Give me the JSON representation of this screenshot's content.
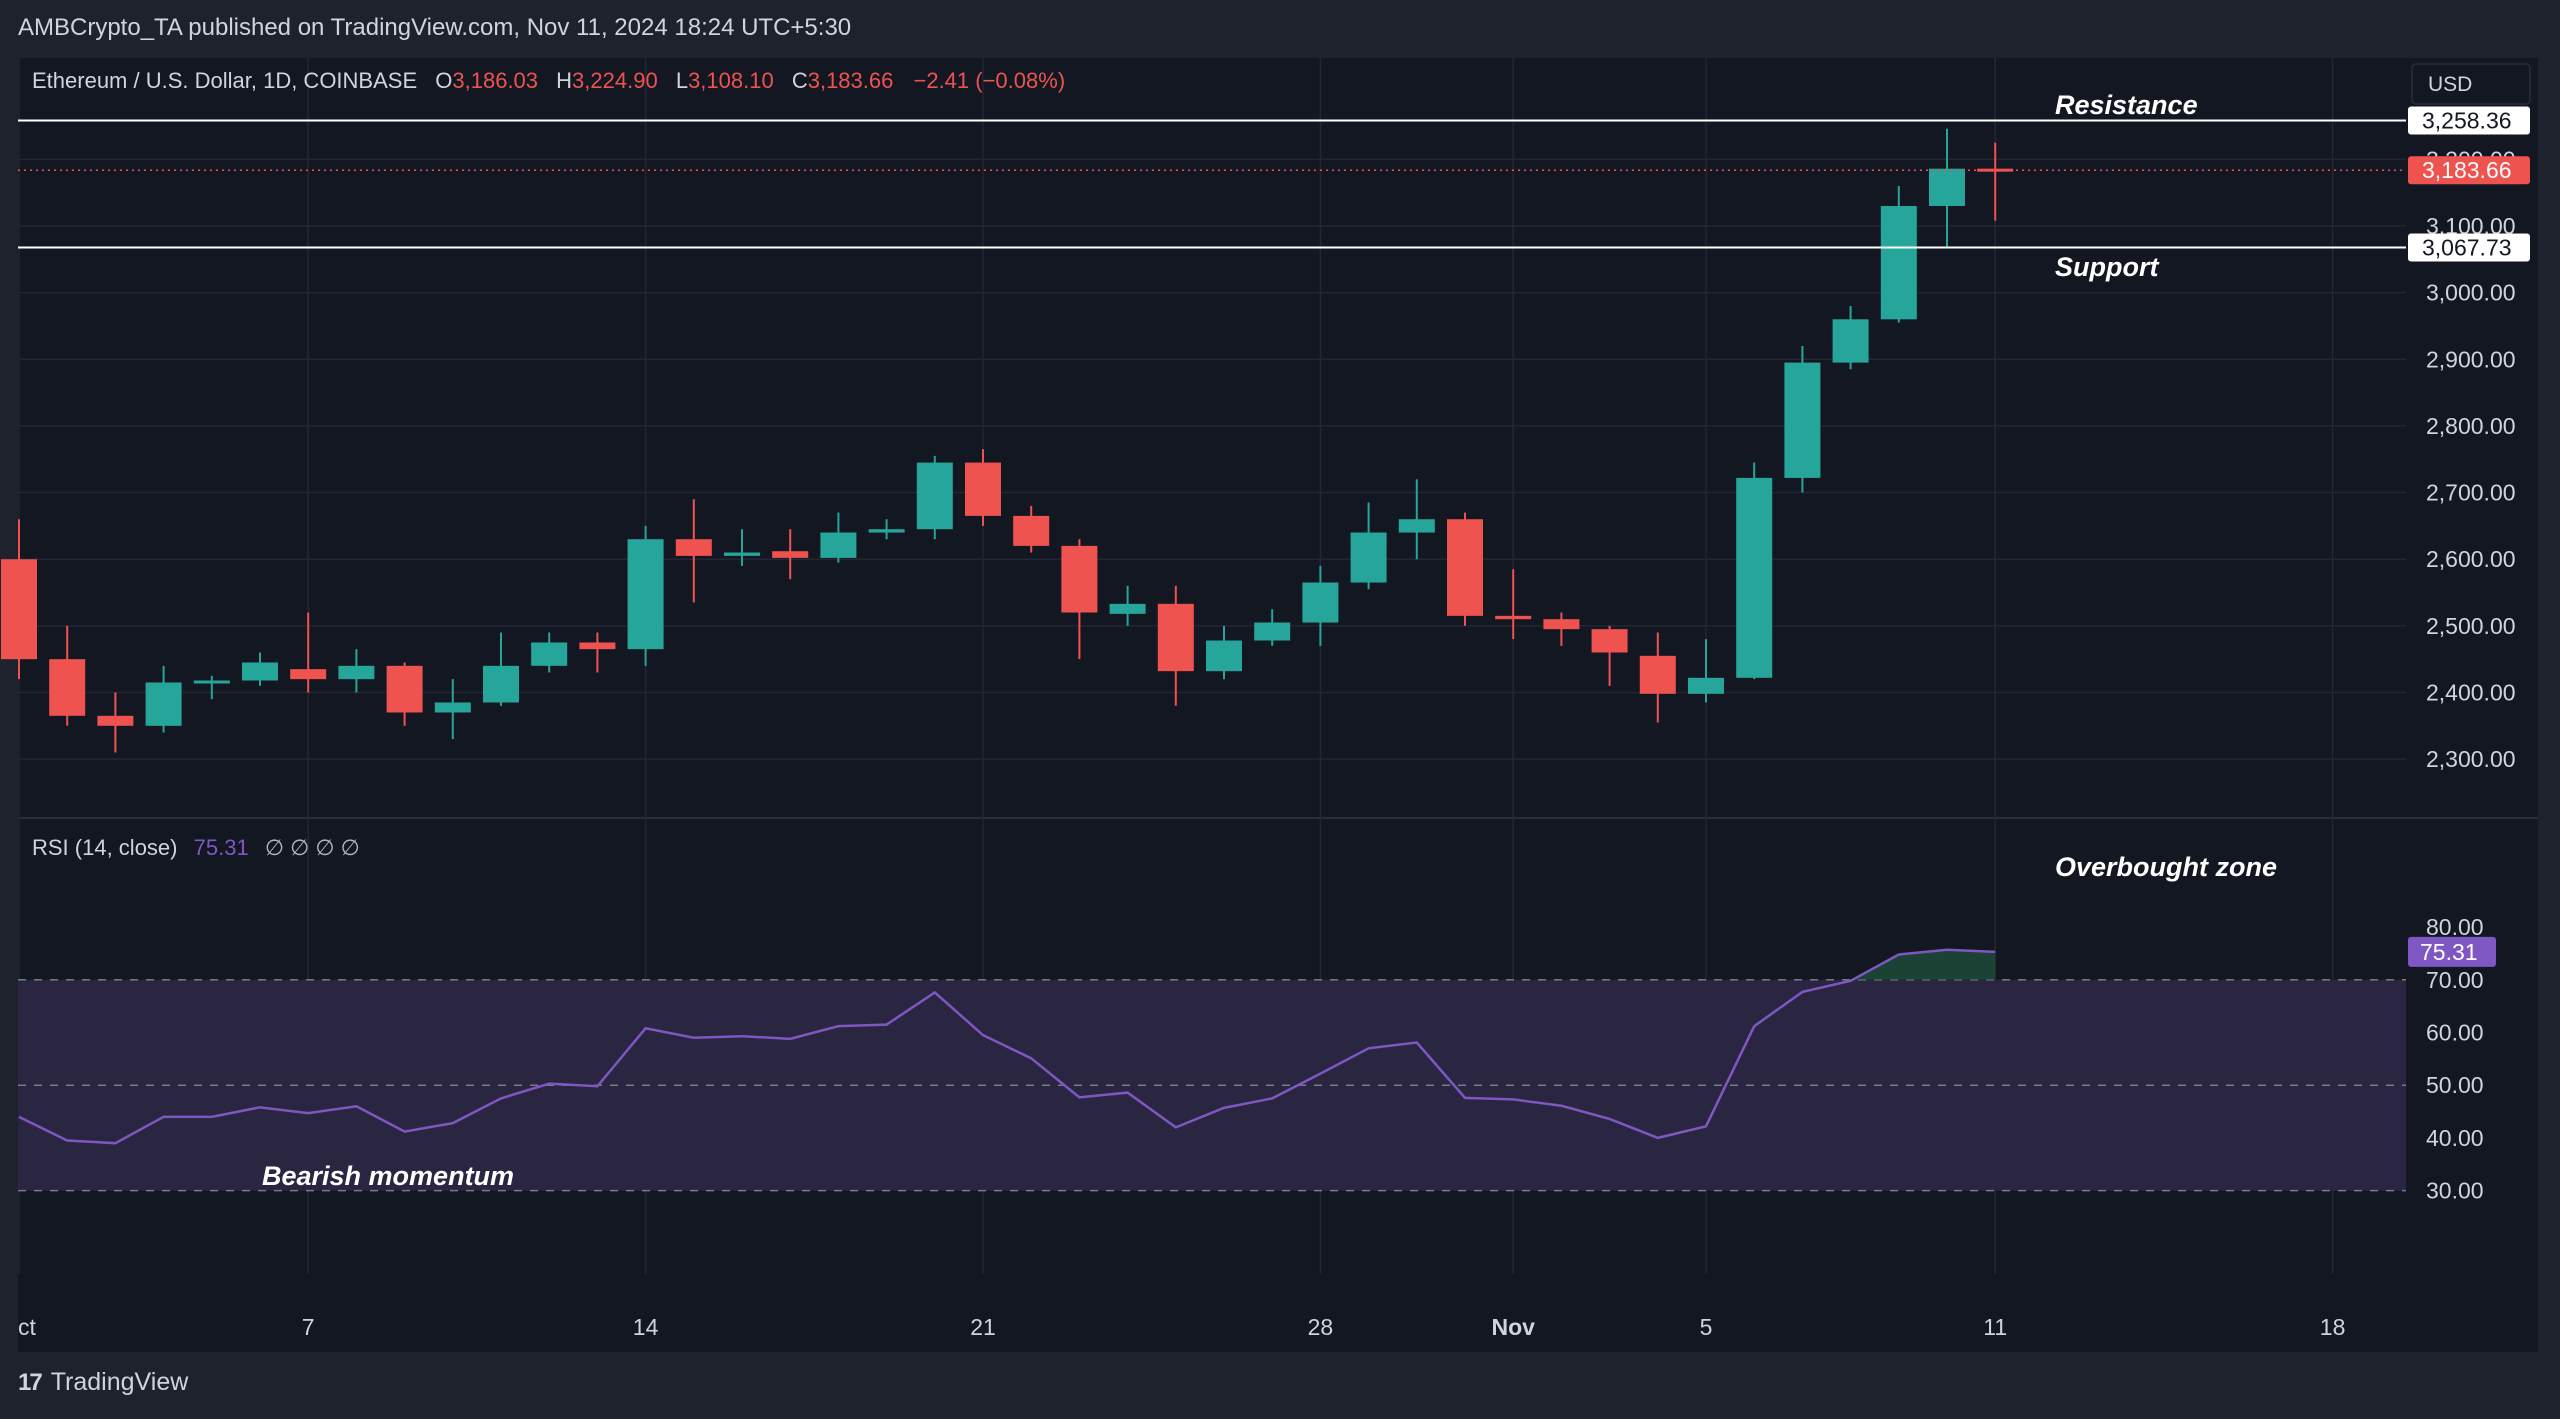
{
  "header": {
    "published": "AMBCrypto_TA published on TradingView.com, Nov 11, 2024 18:24 UTC+5:30"
  },
  "legend": {
    "symbol": "Ethereum / U.S. Dollar, 1D, COINBASE",
    "o_label": "O",
    "o_value": "3,186.03",
    "h_label": "H",
    "h_value": "3,224.90",
    "l_label": "L",
    "l_value": "3,108.10",
    "c_label": "C",
    "c_value": "3,183.66",
    "change": "−2.41 (−0.08%)"
  },
  "currency": "USD",
  "rsi_legend": {
    "label": "RSI (14, close)",
    "value": "75.31",
    "extras": "∅ ∅ ∅ ∅"
  },
  "annotations": {
    "resistance": "Resistance",
    "support": "Support",
    "overbought": "Overbought zone",
    "bearish": "Bearish momentum"
  },
  "footer": {
    "brand": "TradingView",
    "logo": "17"
  },
  "colors": {
    "background": "#131722",
    "panel": "#1e222d",
    "up": "#26a69a",
    "down": "#ef5350",
    "rsi_line": "#7e57c2",
    "rsi_band": "#2a2540",
    "grid": "#232734",
    "text": "#d1d4dc"
  },
  "chart_data": {
    "type": "candlestick",
    "price_axis": {
      "ylim": [
        2200,
        3300
      ],
      "ticks": [
        {
          "value": 2300,
          "label": "2,300.00"
        },
        {
          "value": 2400,
          "label": "2,400.00"
        },
        {
          "value": 2500,
          "label": "2,500.00"
        },
        {
          "value": 2600,
          "label": "2,600.00"
        },
        {
          "value": 2700,
          "label": "2,700.00"
        },
        {
          "value": 2800,
          "label": "2,800.00"
        },
        {
          "value": 2900,
          "label": "2,900.00"
        },
        {
          "value": 3000,
          "label": "3,000.00"
        },
        {
          "value": 3100,
          "label": "3,100.00"
        },
        {
          "value": 3200,
          "label": "3,200.00"
        }
      ]
    },
    "price_labels": [
      {
        "name": "resistance",
        "value": 3258.36,
        "label": "3,258.36",
        "style": "white"
      },
      {
        "name": "last",
        "value": 3183.66,
        "label": "3,183.66",
        "style": "red"
      },
      {
        "name": "support",
        "value": 3067.73,
        "label": "3,067.73",
        "style": "white"
      }
    ],
    "x_axis": {
      "ticks": [
        {
          "date": "2024-10-01",
          "label": "ct"
        },
        {
          "date": "2024-10-07",
          "label": "7"
        },
        {
          "date": "2024-10-14",
          "label": "14"
        },
        {
          "date": "2024-10-21",
          "label": "21"
        },
        {
          "date": "2024-10-28",
          "label": "28"
        },
        {
          "date": "2024-11-01",
          "label": "Nov"
        },
        {
          "date": "2024-11-05",
          "label": "5"
        },
        {
          "date": "2024-11-11",
          "label": "11"
        },
        {
          "date": "2024-11-18",
          "label": "18"
        }
      ]
    },
    "candles": [
      {
        "date": "2024-10-01",
        "o": 2600,
        "h": 2660,
        "l": 2420,
        "c": 2450
      },
      {
        "date": "2024-10-02",
        "o": 2450,
        "h": 2500,
        "l": 2350,
        "c": 2365
      },
      {
        "date": "2024-10-03",
        "o": 2365,
        "h": 2400,
        "l": 2310,
        "c": 2350
      },
      {
        "date": "2024-10-04",
        "o": 2350,
        "h": 2440,
        "l": 2340,
        "c": 2415
      },
      {
        "date": "2024-10-05",
        "o": 2415,
        "h": 2425,
        "l": 2390,
        "c": 2418
      },
      {
        "date": "2024-10-06",
        "o": 2418,
        "h": 2460,
        "l": 2410,
        "c": 2445
      },
      {
        "date": "2024-10-07",
        "o": 2435,
        "h": 2520,
        "l": 2400,
        "c": 2420
      },
      {
        "date": "2024-10-08",
        "o": 2420,
        "h": 2465,
        "l": 2400,
        "c": 2440
      },
      {
        "date": "2024-10-09",
        "o": 2440,
        "h": 2445,
        "l": 2350,
        "c": 2370
      },
      {
        "date": "2024-10-10",
        "o": 2370,
        "h": 2420,
        "l": 2330,
        "c": 2385
      },
      {
        "date": "2024-10-11",
        "o": 2385,
        "h": 2490,
        "l": 2380,
        "c": 2440
      },
      {
        "date": "2024-10-12",
        "o": 2440,
        "h": 2490,
        "l": 2430,
        "c": 2475
      },
      {
        "date": "2024-10-13",
        "o": 2475,
        "h": 2490,
        "l": 2430,
        "c": 2465
      },
      {
        "date": "2024-10-14",
        "o": 2465,
        "h": 2650,
        "l": 2440,
        "c": 2630
      },
      {
        "date": "2024-10-15",
        "o": 2630,
        "h": 2690,
        "l": 2535,
        "c": 2605
      },
      {
        "date": "2024-10-16",
        "o": 2605,
        "h": 2645,
        "l": 2590,
        "c": 2610
      },
      {
        "date": "2024-10-17",
        "o": 2612,
        "h": 2645,
        "l": 2570,
        "c": 2602
      },
      {
        "date": "2024-10-18",
        "o": 2602,
        "h": 2670,
        "l": 2595,
        "c": 2640
      },
      {
        "date": "2024-10-19",
        "o": 2640,
        "h": 2660,
        "l": 2630,
        "c": 2645
      },
      {
        "date": "2024-10-20",
        "o": 2645,
        "h": 2755,
        "l": 2630,
        "c": 2745
      },
      {
        "date": "2024-10-21",
        "o": 2745,
        "h": 2765,
        "l": 2650,
        "c": 2665
      },
      {
        "date": "2024-10-22",
        "o": 2665,
        "h": 2680,
        "l": 2610,
        "c": 2620
      },
      {
        "date": "2024-10-23",
        "o": 2620,
        "h": 2630,
        "l": 2450,
        "c": 2520
      },
      {
        "date": "2024-10-24",
        "o": 2518,
        "h": 2560,
        "l": 2500,
        "c": 2533
      },
      {
        "date": "2024-10-25",
        "o": 2533,
        "h": 2560,
        "l": 2380,
        "c": 2432
      },
      {
        "date": "2024-10-26",
        "o": 2432,
        "h": 2500,
        "l": 2420,
        "c": 2478
      },
      {
        "date": "2024-10-27",
        "o": 2478,
        "h": 2525,
        "l": 2470,
        "c": 2505
      },
      {
        "date": "2024-10-28",
        "o": 2505,
        "h": 2590,
        "l": 2470,
        "c": 2565
      },
      {
        "date": "2024-10-29",
        "o": 2565,
        "h": 2685,
        "l": 2555,
        "c": 2640
      },
      {
        "date": "2024-10-30",
        "o": 2640,
        "h": 2720,
        "l": 2600,
        "c": 2660
      },
      {
        "date": "2024-10-31",
        "o": 2660,
        "h": 2670,
        "l": 2500,
        "c": 2515
      },
      {
        "date": "2024-11-01",
        "o": 2515,
        "h": 2585,
        "l": 2480,
        "c": 2510
      },
      {
        "date": "2024-11-02",
        "o": 2510,
        "h": 2520,
        "l": 2470,
        "c": 2495
      },
      {
        "date": "2024-11-03",
        "o": 2495,
        "h": 2500,
        "l": 2410,
        "c": 2460
      },
      {
        "date": "2024-11-04",
        "o": 2455,
        "h": 2490,
        "l": 2355,
        "c": 2398
      },
      {
        "date": "2024-11-05",
        "o": 2398,
        "h": 2480,
        "l": 2385,
        "c": 2422
      },
      {
        "date": "2024-11-06",
        "o": 2422,
        "h": 2745,
        "l": 2420,
        "c": 2722
      },
      {
        "date": "2024-11-07",
        "o": 2722,
        "h": 2920,
        "l": 2700,
        "c": 2895
      },
      {
        "date": "2024-11-08",
        "o": 2895,
        "h": 2980,
        "l": 2885,
        "c": 2960
      },
      {
        "date": "2024-11-09",
        "o": 2960,
        "h": 3160,
        "l": 2955,
        "c": 3130
      },
      {
        "date": "2024-11-10",
        "o": 3130,
        "h": 3246,
        "l": 3068,
        "c": 3186
      },
      {
        "date": "2024-11-11",
        "o": 3186.03,
        "h": 3224.9,
        "l": 3108.1,
        "c": 3183.66
      }
    ],
    "rsi": {
      "title": "RSI (14, close)",
      "ylim": [
        25,
        84
      ],
      "ticks": [
        {
          "value": 30,
          "label": "30.00"
        },
        {
          "value": 40,
          "label": "40.00"
        },
        {
          "value": 50,
          "label": "50.00"
        },
        {
          "value": 60,
          "label": "60.00"
        },
        {
          "value": 70,
          "label": "70.00"
        },
        {
          "value": 80,
          "label": "80.00"
        }
      ],
      "bands": {
        "upper": 70,
        "middle": 50,
        "lower": 30
      },
      "values": [
        44,
        39.5,
        39,
        44,
        44,
        45.8,
        44.7,
        46,
        41.2,
        42.8,
        47.5,
        50.3,
        49.8,
        60.8,
        59,
        59.3,
        58.8,
        61.2,
        61.5,
        67.6,
        59.5,
        55.1,
        47.7,
        48.6,
        42,
        45.7,
        47.5,
        52.2,
        57,
        58.1,
        47.6,
        47.3,
        46.1,
        43.6,
        40,
        42.2,
        61.2,
        67.7,
        69.8,
        74.8,
        75.7,
        75.31
      ],
      "last_label": "75.31"
    }
  }
}
